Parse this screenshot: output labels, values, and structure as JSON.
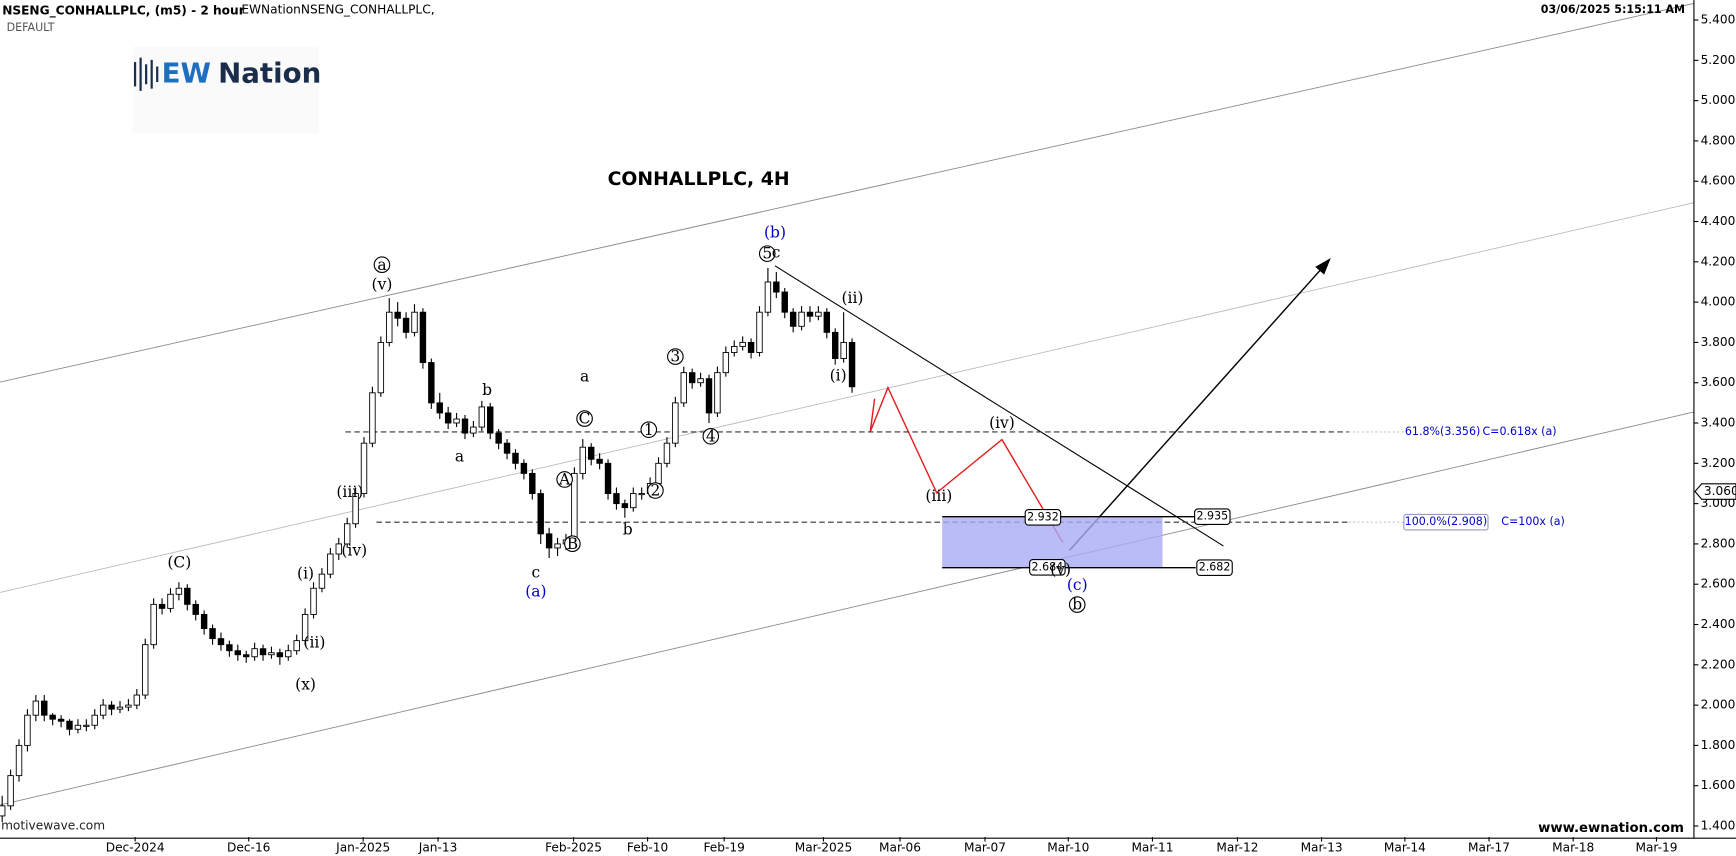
{
  "chart_data": {
    "type": "candlestick",
    "symbol": "NSENG_CONHALLPLC, (m5) - 2 hour",
    "study": "EWNationNSENG_CONHALLPLC,",
    "template": "DEFAULT",
    "timestamp": "03/06/2025 5:15:11 AM",
    "title": "CONHALLPLC, 4H",
    "logo": {
      "left": "EW",
      "right": "Nation"
    },
    "source": "motivewave.com",
    "website": "www.ewnation.com",
    "up_color": "#ffffff",
    "down_color": "#000000",
    "ohlc": [
      [
        1.45,
        1.55,
        1.42,
        1.5
      ],
      [
        1.5,
        1.68,
        1.48,
        1.65
      ],
      [
        1.65,
        1.83,
        1.62,
        1.8
      ],
      [
        1.8,
        1.98,
        1.77,
        1.95
      ],
      [
        1.95,
        2.05,
        1.92,
        2.02
      ],
      [
        2.02,
        2.05,
        1.92,
        1.95
      ],
      [
        1.95,
        1.96,
        1.9,
        1.93
      ],
      [
        1.93,
        1.95,
        1.89,
        1.92
      ],
      [
        1.92,
        1.93,
        1.85,
        1.88
      ],
      [
        1.88,
        1.93,
        1.86,
        1.9
      ],
      [
        1.9,
        1.93,
        1.87,
        1.9
      ],
      [
        1.9,
        1.98,
        1.88,
        1.95
      ],
      [
        1.95,
        2.03,
        1.93,
        2.0
      ],
      [
        2.0,
        2.02,
        1.95,
        1.98
      ],
      [
        1.98,
        2.02,
        1.96,
        1.99
      ],
      [
        1.99,
        2.03,
        1.97,
        2.0
      ],
      [
        2.0,
        2.08,
        1.98,
        2.05
      ],
      [
        2.05,
        2.33,
        2.03,
        2.3
      ],
      [
        2.3,
        2.53,
        2.28,
        2.5
      ],
      [
        2.5,
        2.53,
        2.45,
        2.48
      ],
      [
        2.48,
        2.58,
        2.46,
        2.55
      ],
      [
        2.55,
        2.61,
        2.52,
        2.58
      ],
      [
        2.58,
        2.6,
        2.47,
        2.5
      ],
      [
        2.5,
        2.52,
        2.42,
        2.45
      ],
      [
        2.45,
        2.47,
        2.35,
        2.38
      ],
      [
        2.38,
        2.4,
        2.3,
        2.33
      ],
      [
        2.33,
        2.36,
        2.27,
        2.3
      ],
      [
        2.3,
        2.32,
        2.24,
        2.27
      ],
      [
        2.27,
        2.3,
        2.22,
        2.25
      ],
      [
        2.25,
        2.27,
        2.21,
        2.24
      ],
      [
        2.24,
        2.31,
        2.22,
        2.28
      ],
      [
        2.28,
        2.3,
        2.22,
        2.25
      ],
      [
        2.25,
        2.29,
        2.23,
        2.26
      ],
      [
        2.26,
        2.28,
        2.2,
        2.24
      ],
      [
        2.24,
        2.3,
        2.22,
        2.27
      ],
      [
        2.27,
        2.35,
        2.25,
        2.32
      ],
      [
        2.32,
        2.48,
        2.3,
        2.45
      ],
      [
        2.45,
        2.61,
        2.43,
        2.58
      ],
      [
        2.58,
        2.68,
        2.56,
        2.65
      ],
      [
        2.65,
        2.78,
        2.63,
        2.75
      ],
      [
        2.75,
        2.83,
        2.72,
        2.8
      ],
      [
        2.8,
        2.93,
        2.78,
        2.9
      ],
      [
        2.9,
        3.08,
        2.88,
        3.05
      ],
      [
        3.05,
        3.33,
        3.03,
        3.3
      ],
      [
        3.3,
        3.58,
        3.28,
        3.55
      ],
      [
        3.55,
        3.83,
        3.53,
        3.8
      ],
      [
        3.8,
        4.02,
        3.78,
        3.95
      ],
      [
        3.95,
        4.0,
        3.88,
        3.92
      ],
      [
        3.92,
        3.95,
        3.82,
        3.85
      ],
      [
        3.85,
        3.99,
        3.83,
        3.95
      ],
      [
        3.95,
        3.97,
        3.67,
        3.7
      ],
      [
        3.7,
        3.72,
        3.47,
        3.5
      ],
      [
        3.5,
        3.55,
        3.42,
        3.45
      ],
      [
        3.45,
        3.48,
        3.37,
        3.4
      ],
      [
        3.4,
        3.45,
        3.38,
        3.42
      ],
      [
        3.42,
        3.44,
        3.32,
        3.35
      ],
      [
        3.35,
        3.41,
        3.33,
        3.38
      ],
      [
        3.38,
        3.51,
        3.36,
        3.48
      ],
      [
        3.48,
        3.5,
        3.32,
        3.35
      ],
      [
        3.35,
        3.37,
        3.27,
        3.3
      ],
      [
        3.3,
        3.32,
        3.22,
        3.25
      ],
      [
        3.25,
        3.27,
        3.17,
        3.2
      ],
      [
        3.2,
        3.22,
        3.12,
        3.15
      ],
      [
        3.15,
        3.17,
        3.02,
        3.05
      ],
      [
        3.05,
        3.07,
        2.8,
        2.85
      ],
      [
        2.85,
        2.88,
        2.73,
        2.78
      ],
      [
        2.78,
        2.83,
        2.74,
        2.8
      ],
      [
        2.8,
        2.85,
        2.77,
        2.82
      ],
      [
        2.82,
        3.18,
        2.8,
        3.15
      ],
      [
        3.15,
        3.32,
        3.12,
        3.28
      ],
      [
        3.28,
        3.3,
        3.19,
        3.22
      ],
      [
        3.22,
        3.25,
        3.17,
        3.2
      ],
      [
        3.2,
        3.22,
        3.02,
        3.05
      ],
      [
        3.05,
        3.08,
        2.97,
        3.0
      ],
      [
        3.0,
        3.02,
        2.93,
        2.98
      ],
      [
        2.98,
        3.08,
        2.96,
        3.05
      ],
      [
        3.05,
        3.08,
        3.02,
        3.05
      ],
      [
        3.05,
        3.13,
        3.03,
        3.1
      ],
      [
        3.1,
        3.23,
        3.08,
        3.2
      ],
      [
        3.2,
        3.33,
        3.18,
        3.3
      ],
      [
        3.3,
        3.53,
        3.28,
        3.5
      ],
      [
        3.5,
        3.68,
        3.48,
        3.65
      ],
      [
        3.65,
        3.67,
        3.57,
        3.6
      ],
      [
        3.6,
        3.65,
        3.58,
        3.62
      ],
      [
        3.62,
        3.64,
        3.4,
        3.45
      ],
      [
        3.45,
        3.68,
        3.43,
        3.65
      ],
      [
        3.65,
        3.78,
        3.63,
        3.75
      ],
      [
        3.75,
        3.81,
        3.73,
        3.78
      ],
      [
        3.78,
        3.83,
        3.76,
        3.8
      ],
      [
        3.8,
        3.82,
        3.72,
        3.75
      ],
      [
        3.75,
        3.98,
        3.73,
        3.95
      ],
      [
        3.95,
        4.17,
        3.93,
        4.1
      ],
      [
        4.1,
        4.15,
        4.02,
        4.05
      ],
      [
        4.05,
        4.07,
        3.92,
        3.95
      ],
      [
        3.95,
        3.97,
        3.85,
        3.88
      ],
      [
        3.88,
        3.98,
        3.86,
        3.95
      ],
      [
        3.95,
        3.98,
        3.9,
        3.93
      ],
      [
        3.93,
        3.98,
        3.91,
        3.95
      ],
      [
        3.95,
        3.97,
        3.82,
        3.85
      ],
      [
        3.85,
        3.87,
        3.69,
        3.72
      ],
      [
        3.72,
        3.95,
        3.7,
        3.8
      ],
      [
        3.8,
        3.82,
        3.55,
        3.58
      ]
    ],
    "xlim": [
      -0.26,
      201.05
    ],
    "xticks": [
      {
        "value": 15.8,
        "label": "Dec-2024"
      },
      {
        "value": 29.3,
        "label": "Dec-16"
      },
      {
        "value": 42.9,
        "label": "Jan-2025"
      },
      {
        "value": 51.8,
        "label": "Jan-13"
      },
      {
        "value": 67.9,
        "label": "Feb-2025"
      },
      {
        "value": 76.7,
        "label": "Feb-10"
      },
      {
        "value": 85.8,
        "label": "Feb-19"
      },
      {
        "value": 97.6,
        "label": "Mar-2025"
      },
      {
        "value": 106.7,
        "label": "Mar-06"
      },
      {
        "value": 116.8,
        "label": "Mar-07"
      },
      {
        "value": 126.7,
        "label": "Mar-10"
      },
      {
        "value": 136.7,
        "label": "Mar-11"
      },
      {
        "value": 146.8,
        "label": "Mar-12"
      },
      {
        "value": 156.8,
        "label": "Mar-13"
      },
      {
        "value": 166.7,
        "label": "Mar-14"
      },
      {
        "value": 176.7,
        "label": "Mar-17"
      },
      {
        "value": 186.7,
        "label": "Mar-18"
      },
      {
        "value": 196.6,
        "label": "Mar-19"
      }
    ],
    "ylim": [
      1.345,
      5.499
    ],
    "yticks": [
      {
        "value": 1.4,
        "label": "1.400"
      },
      {
        "value": 1.6,
        "label": "1.600"
      },
      {
        "value": 1.8,
        "label": "1.800"
      },
      {
        "value": 2.0,
        "label": "2.000"
      },
      {
        "value": 2.2,
        "label": "2.200"
      },
      {
        "value": 2.4,
        "label": "2.400"
      },
      {
        "value": 2.6,
        "label": "2.600"
      },
      {
        "value": 2.8,
        "label": "2.800"
      },
      {
        "value": 3.0,
        "label": "3.000"
      },
      {
        "value": 3.2,
        "label": "3.200"
      },
      {
        "value": 3.4,
        "label": "3.400"
      },
      {
        "value": 3.6,
        "label": "3.600"
      },
      {
        "value": 3.8,
        "label": "3.800"
      },
      {
        "value": 4.0,
        "label": "4.000"
      },
      {
        "value": 4.2,
        "label": "4.200"
      },
      {
        "value": 4.4,
        "label": "4.400"
      },
      {
        "value": 4.6,
        "label": "4.600"
      },
      {
        "value": 4.8,
        "label": "4.800"
      },
      {
        "value": 5.0,
        "label": "5.000"
      },
      {
        "value": 5.2,
        "label": "5.200"
      },
      {
        "value": 5.4,
        "label": "5.400"
      }
    ],
    "last_price": {
      "value": 3.06,
      "label": "3.060"
    },
    "levels": [
      {
        "value": 3.356,
        "label": "61.8%(3.356)",
        "note": "C=0.618x (a)"
      },
      {
        "value": 2.908,
        "label": "100.0%(2.908)",
        "note": "C=100x (a)"
      }
    ],
    "target_box": {
      "color": "#a9abf5",
      "top": [
        {
          "value": 2.932,
          "label": "2.932"
        },
        {
          "value": 2.935,
          "label": "2.935"
        }
      ],
      "bottom": [
        {
          "value": 2.684,
          "label": "2.684"
        },
        {
          "value": 2.682,
          "label": "2.682"
        }
      ]
    },
    "annotations": [
      {
        "text": "a",
        "circled": true,
        "color": "#000000"
      },
      {
        "text": "(v)",
        "circled": false,
        "color": "#000000"
      },
      {
        "text": "(C)",
        "circled": false,
        "color": "#000000"
      },
      {
        "text": "(i)",
        "circled": false,
        "color": "#000000"
      },
      {
        "text": "(ii)",
        "circled": false,
        "color": "#000000"
      },
      {
        "text": "(x)",
        "circled": false,
        "color": "#000000"
      },
      {
        "text": "(iii)",
        "circled": false,
        "color": "#000000"
      },
      {
        "text": "(iv)",
        "circled": false,
        "color": "#000000"
      },
      {
        "text": "b",
        "circled": false,
        "color": "#000000"
      },
      {
        "text": "a",
        "circled": false,
        "color": "#000000"
      },
      {
        "text": "a",
        "circled": false,
        "color": "#000000"
      },
      {
        "text": "c",
        "circled": false,
        "color": "#000000"
      },
      {
        "text": "(a)",
        "circled": false,
        "color": "#0000cc"
      },
      {
        "text": "C",
        "circled": true,
        "color": "#000000"
      },
      {
        "text": "A",
        "circled": true,
        "color": "#000000"
      },
      {
        "text": "B",
        "circled": true,
        "color": "#000000"
      },
      {
        "text": "b",
        "circled": false,
        "color": "#000000"
      },
      {
        "text": "1",
        "circled": true,
        "color": "#000000"
      },
      {
        "text": "2",
        "circled": true,
        "color": "#000000"
      },
      {
        "text": "3",
        "circled": true,
        "color": "#000000"
      },
      {
        "text": "4",
        "circled": true,
        "color": "#000000"
      },
      {
        "text": "(b)",
        "circled": false,
        "color": "#0000cc"
      },
      {
        "text": "5",
        "circled": true,
        "color": "#000000"
      },
      {
        "text": "c",
        "circled": false,
        "color": "#000000"
      },
      {
        "text": "(ii)",
        "circled": false,
        "color": "#000000"
      },
      {
        "text": "(i)",
        "circled": false,
        "color": "#000000"
      },
      {
        "text": "(iv)",
        "circled": false,
        "color": "#000000"
      },
      {
        "text": "(iii)",
        "circled": false,
        "color": "#000000"
      },
      {
        "text": "(v)",
        "circled": false,
        "color": "#000000"
      },
      {
        "text": "(c)",
        "circled": false,
        "color": "#0000cc"
      },
      {
        "text": "b",
        "circled": true,
        "color": "#000000"
      }
    ]
  }
}
